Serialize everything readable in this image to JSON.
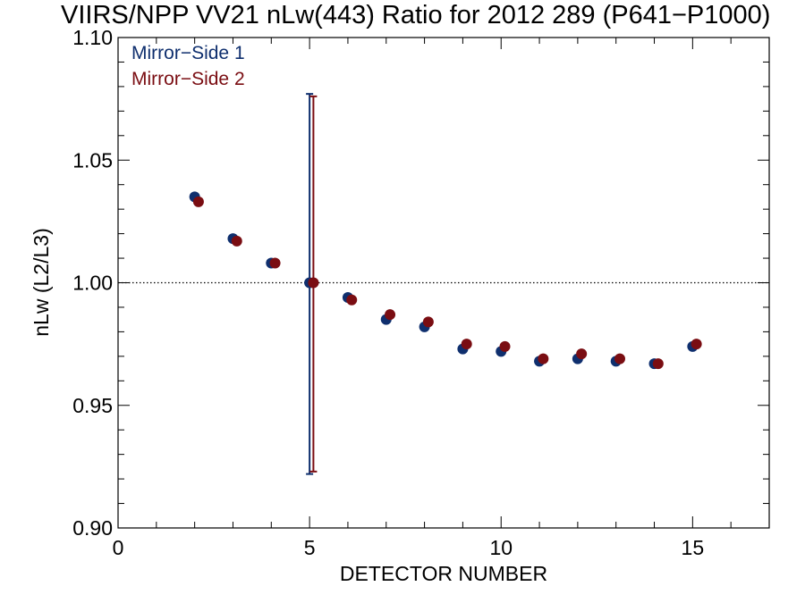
{
  "chart_data": {
    "type": "scatter",
    "title": "VIIRS/NPP VV21 nLw(443) Ratio for 2012 289 (P641−P1000)",
    "xlabel": "DETECTOR NUMBER",
    "ylabel": "nLw (L2/L3)",
    "xlim": [
      0,
      17
    ],
    "ylim": [
      0.9,
      1.1
    ],
    "x_ticks": [
      0,
      5,
      10,
      15
    ],
    "x_tick_labels": [
      "0",
      "5",
      "10",
      "15"
    ],
    "y_ticks": [
      0.9,
      0.95,
      1.0,
      1.05,
      1.1
    ],
    "y_tick_labels": [
      "0.90",
      "0.95",
      "1.00",
      "1.05",
      "1.10"
    ],
    "reference_line": 1.0,
    "legend_position": "top-left",
    "colors": {
      "series1": "#0f2f6e",
      "series2": "#7a0d12",
      "axes": "#000000"
    },
    "series": [
      {
        "name": "Mirror−Side 1",
        "x": [
          2,
          3,
          4,
          5,
          6,
          7,
          8,
          9,
          10,
          11,
          12,
          13,
          14,
          15
        ],
        "y": [
          1.035,
          1.018,
          1.008,
          1.0,
          0.994,
          0.985,
          0.982,
          0.973,
          0.972,
          0.968,
          0.969,
          0.968,
          0.967,
          0.974
        ],
        "error_bar": {
          "x": 5,
          "low": 0.922,
          "high": 1.077
        }
      },
      {
        "name": "Mirror−Side 2",
        "x": [
          2.1,
          3.1,
          4.1,
          5.1,
          6.1,
          7.1,
          8.1,
          9.1,
          10.1,
          11.1,
          12.1,
          13.1,
          14.1,
          15.1
        ],
        "y": [
          1.033,
          1.017,
          1.008,
          1.0,
          0.993,
          0.987,
          0.984,
          0.975,
          0.974,
          0.969,
          0.971,
          0.969,
          0.967,
          0.975
        ],
        "error_bar": {
          "x": 5.1,
          "low": 0.923,
          "high": 1.076
        }
      }
    ]
  }
}
